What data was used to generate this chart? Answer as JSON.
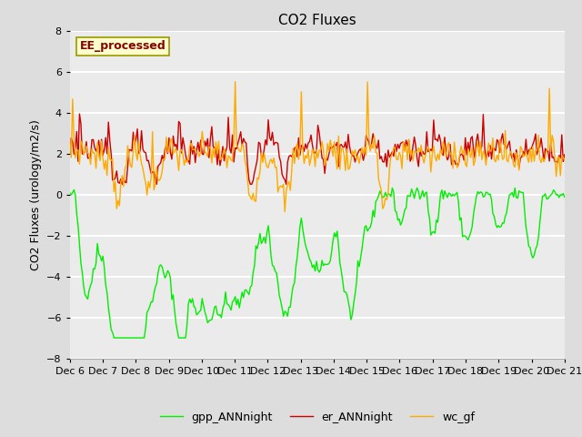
{
  "title": "CO2 Fluxes",
  "ylabel": "CO2 Fluxes (urology/m2/s)",
  "ylim": [
    -8,
    8
  ],
  "yticks": [
    -8,
    -6,
    -4,
    -2,
    0,
    2,
    4,
    6,
    8
  ],
  "background_color": "#dddddd",
  "plot_bg_color": "#ebebeb",
  "gpp_color": "#00ee00",
  "er_color": "#cc0000",
  "wc_color": "#ffaa00",
  "legend_labels": [
    "gpp_ANNnight",
    "er_ANNnight",
    "wc_gf"
  ],
  "annotation_text": "EE_processed",
  "annotation_bg": "#ffffcc",
  "annotation_border": "#999900",
  "annotation_text_color": "#880000",
  "title_fontsize": 11,
  "axis_fontsize": 9,
  "tick_fontsize": 8,
  "legend_fontsize": 9,
  "linewidth": 1.0,
  "grid_color": "#ffffff",
  "grid_linewidth": 1.5
}
